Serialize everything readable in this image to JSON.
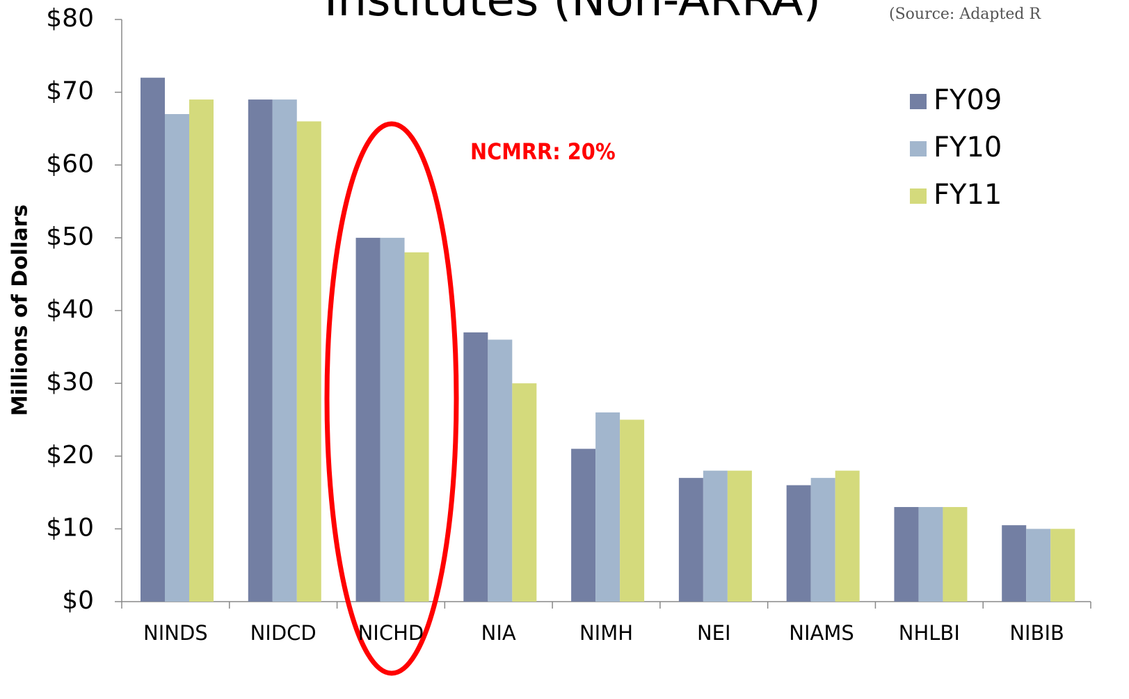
{
  "chart_data": {
    "type": "bar",
    "title": "Institutes (Non-ARRA)",
    "subtitle": "(Source: Adapted R",
    "y_label": "Millions of Dollars",
    "annotation": "NCMRR:  20%",
    "categories": [
      "NINDS",
      "NIDCD",
      "NICHD",
      "NIA",
      "NIMH",
      "NEI",
      "NIAMS",
      "NHLBI",
      "NIBIB"
    ],
    "series": [
      {
        "name": "FY09",
        "color": "#737fa3",
        "values": [
          72,
          69,
          50,
          37,
          21,
          17,
          16,
          13,
          10.5
        ]
      },
      {
        "name": "FY10",
        "color": "#a2b6cd",
        "values": [
          67,
          69,
          50,
          36,
          26,
          18,
          17,
          13,
          10
        ]
      },
      {
        "name": "FY11",
        "color": "#d4da7c",
        "values": [
          69,
          66,
          48,
          30,
          25,
          18,
          18,
          13,
          10
        ]
      }
    ],
    "ylim": [
      0,
      80
    ],
    "yticks": [
      {
        "value": 0,
        "label": "$0"
      },
      {
        "value": 10,
        "label": "$10"
      },
      {
        "value": 20,
        "label": "$20"
      },
      {
        "value": 30,
        "label": "$30"
      },
      {
        "value": 40,
        "label": "$40"
      },
      {
        "value": 50,
        "label": "$50"
      },
      {
        "value": 60,
        "label": "$60"
      },
      {
        "value": 70,
        "label": "$70"
      },
      {
        "value": 80,
        "label": "$80"
      }
    ],
    "grid": false,
    "legend": "top-right"
  }
}
